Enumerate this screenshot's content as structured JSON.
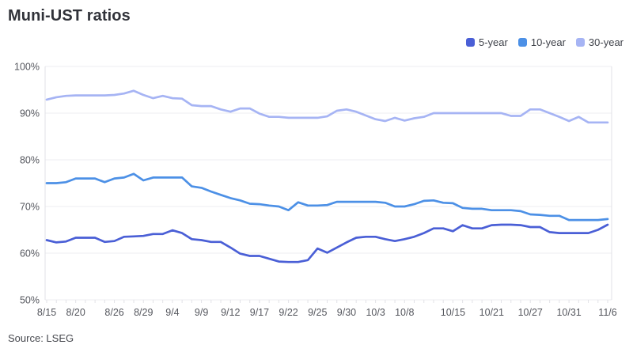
{
  "title": "Muni-UST ratios",
  "source": "Source: LSEG",
  "colors": {
    "accent_5yr": "#4a5fd6",
    "accent_10yr": "#4c90e6",
    "accent_30yr": "#a6b4f4",
    "grid": "#ededf0",
    "axis": "#e2e2e7",
    "tick_label": "#55575e",
    "title_text": "#303239",
    "source_text": "#47494f"
  },
  "legend": {
    "position": "top-right",
    "items": [
      "5-year",
      "10-year",
      "30-year"
    ]
  },
  "chart_data": {
    "type": "line",
    "title": "Muni-UST ratios",
    "xlabel": "",
    "ylabel": "",
    "ylim": [
      50,
      100
    ],
    "ytick_step": 10,
    "ytick_labels": [
      "100%",
      "90%",
      "80%",
      "70%",
      "60%",
      "50%"
    ],
    "grid": "horizontal",
    "legend_position": "top-right",
    "n_points": 59,
    "x_labels": [
      "8/15",
      "8/20",
      "8/26",
      "8/29",
      "9/4",
      "9/9",
      "9/12",
      "9/17",
      "9/22",
      "9/25",
      "9/30",
      "10/3",
      "10/8",
      "10/15",
      "10/21",
      "10/27",
      "10/31",
      "11/6"
    ],
    "x_label_indices": [
      0,
      3,
      7,
      10,
      13,
      16,
      19,
      22,
      25,
      28,
      31,
      34,
      37,
      42,
      46,
      50,
      54,
      58
    ],
    "series": [
      {
        "name": "5-year",
        "color": "#4a5fd6",
        "values": [
          62.8,
          62.3,
          62.5,
          63.3,
          63.3,
          63.3,
          62.4,
          62.6,
          63.5,
          63.6,
          63.7,
          64.1,
          64.1,
          64.9,
          64.3,
          63.0,
          62.8,
          62.4,
          62.4,
          61.2,
          59.9,
          59.4,
          59.4,
          58.8,
          58.2,
          58.1,
          58.1,
          58.5,
          61.0,
          60.1,
          61.2,
          62.3,
          63.3,
          63.5,
          63.5,
          63.0,
          62.6,
          63.0,
          63.5,
          64.3,
          65.3,
          65.3,
          64.7,
          66.0,
          65.3,
          65.3,
          66.0,
          66.1,
          66.1,
          66.0,
          65.6,
          65.6,
          64.5,
          64.3,
          64.3,
          64.3,
          64.3,
          65.0,
          66.1
        ]
      },
      {
        "name": "10-year",
        "color": "#4c90e6",
        "values": [
          75.0,
          75.0,
          75.2,
          76.0,
          76.0,
          76.0,
          75.2,
          76.0,
          76.2,
          77.0,
          75.6,
          76.2,
          76.2,
          76.2,
          76.2,
          74.3,
          74.0,
          73.2,
          72.5,
          71.8,
          71.3,
          70.6,
          70.5,
          70.2,
          70.0,
          69.2,
          70.9,
          70.2,
          70.2,
          70.3,
          71.0,
          71.0,
          71.0,
          71.0,
          71.0,
          70.8,
          70.0,
          70.0,
          70.5,
          71.2,
          71.3,
          70.8,
          70.7,
          69.7,
          69.5,
          69.5,
          69.2,
          69.2,
          69.2,
          69.0,
          68.3,
          68.2,
          68.0,
          68.0,
          67.1,
          67.1,
          67.1,
          67.1,
          67.3
        ]
      },
      {
        "name": "30-year",
        "color": "#a6b4f4",
        "values": [
          92.9,
          93.4,
          93.7,
          93.8,
          93.8,
          93.8,
          93.8,
          93.9,
          94.2,
          94.8,
          93.9,
          93.2,
          93.7,
          93.2,
          93.1,
          91.7,
          91.5,
          91.5,
          90.8,
          90.3,
          91.0,
          91.0,
          89.9,
          89.2,
          89.2,
          89.0,
          89.0,
          89.0,
          89.0,
          89.3,
          90.5,
          90.8,
          90.3,
          89.5,
          88.7,
          88.3,
          89.0,
          88.4,
          88.9,
          89.2,
          90.0,
          90.0,
          90.0,
          90.0,
          90.0,
          90.0,
          90.0,
          90.0,
          89.4,
          89.4,
          90.8,
          90.8,
          90.0,
          89.2,
          88.3,
          89.2,
          88.0,
          88.0,
          88.0
        ]
      }
    ]
  }
}
